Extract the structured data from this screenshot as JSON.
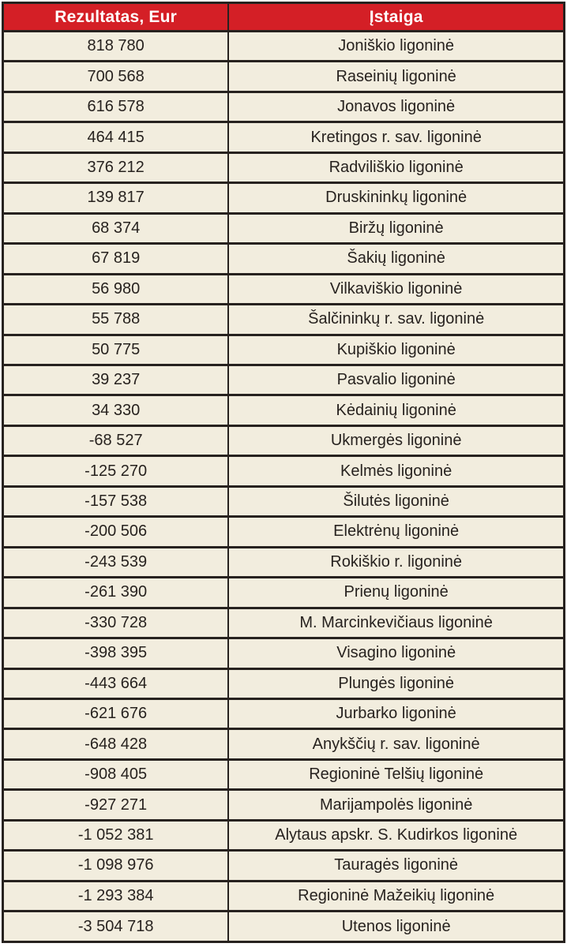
{
  "table": {
    "columns": [
      {
        "label": "Rezultatas, Eur"
      },
      {
        "label": "Įstaiga"
      }
    ],
    "rows": [
      {
        "result": "818 780",
        "institution": "Joniškio ligoninė"
      },
      {
        "result": "700 568",
        "institution": "Raseinių ligoninė"
      },
      {
        "result": "616 578",
        "institution": "Jonavos ligoninė"
      },
      {
        "result": "464 415",
        "institution": "Kretingos r. sav. ligoninė"
      },
      {
        "result": "376 212",
        "institution": "Radviliškio ligoninė"
      },
      {
        "result": "139 817",
        "institution": "Druskininkų ligoninė"
      },
      {
        "result": "68 374",
        "institution": "Biržų ligoninė"
      },
      {
        "result": "67 819",
        "institution": "Šakių ligoninė"
      },
      {
        "result": "56 980",
        "institution": "Vilkaviškio ligoninė"
      },
      {
        "result": "55 788",
        "institution": "Šalčininkų r. sav. ligoninė"
      },
      {
        "result": "50 775",
        "institution": "Kupiškio ligoninė"
      },
      {
        "result": "39 237",
        "institution": "Pasvalio ligoninė"
      },
      {
        "result": "34 330",
        "institution": "Kėdainių ligoninė"
      },
      {
        "result": "-68 527",
        "institution": "Ukmergės ligoninė"
      },
      {
        "result": "-125 270",
        "institution": "Kelmės ligoninė"
      },
      {
        "result": "-157 538",
        "institution": "Šilutės ligoninė"
      },
      {
        "result": "-200 506",
        "institution": "Elektrėnų ligoninė"
      },
      {
        "result": "-243 539",
        "institution": "Rokiškio r. ligoninė"
      },
      {
        "result": "-261 390",
        "institution": "Prienų ligoninė"
      },
      {
        "result": "-330 728",
        "institution": "M. Marcinkevičiaus ligoninė"
      },
      {
        "result": "-398 395",
        "institution": "Visagino ligoninė"
      },
      {
        "result": "-443 664",
        "institution": "Plungės ligoninė"
      },
      {
        "result": "-621 676",
        "institution": "Jurbarko ligoninė"
      },
      {
        "result": "-648 428",
        "institution": "Anykščių r. sav. ligoninė"
      },
      {
        "result": "-908 405",
        "institution": "Regioninė Telšių ligoninė"
      },
      {
        "result": "-927 271",
        "institution": "Marijampolės ligoninė"
      },
      {
        "result": "-1 052 381",
        "institution": "Alytaus apskr. S. Kudirkos ligoninė"
      },
      {
        "result": "-1 098 976",
        "institution": "Tauragės ligoninė"
      },
      {
        "result": "-1 293 384",
        "institution": "Regioninė Mažeikių ligoninė"
      },
      {
        "result": "-3 504 718",
        "institution": "Utenos ligoninė"
      }
    ]
  },
  "colors": {
    "header_bg": "#d41f26",
    "header_text": "#ffffff",
    "row_bg": "#f2edde",
    "border": "#27221f",
    "text": "#27221f"
  },
  "chart_data": {
    "type": "table",
    "title": "",
    "columns": [
      "Rezultatas, Eur",
      "Įstaiga"
    ],
    "rows": [
      [
        "818 780",
        "Joniškio ligoninė"
      ],
      [
        "700 568",
        "Raseinių ligoninė"
      ],
      [
        "616 578",
        "Jonavos ligoninė"
      ],
      [
        "464 415",
        "Kretingos r. sav. ligoninė"
      ],
      [
        "376 212",
        "Radviliškio ligoninė"
      ],
      [
        "139 817",
        "Druskininkų ligoninė"
      ],
      [
        "68 374",
        "Biržų ligoninė"
      ],
      [
        "67 819",
        "Šakių ligoninė"
      ],
      [
        "56 980",
        "Vilkaviškio ligoninė"
      ],
      [
        "55 788",
        "Šalčininkų r. sav. ligoninė"
      ],
      [
        "50 775",
        "Kupiškio ligoninė"
      ],
      [
        "39 237",
        "Pasvalio ligoninė"
      ],
      [
        "34 330",
        "Kėdainių ligoninė"
      ],
      [
        "-68 527",
        "Ukmergės ligoninė"
      ],
      [
        "-125 270",
        "Kelmės ligoninė"
      ],
      [
        "-157 538",
        "Šilutės ligoninė"
      ],
      [
        "-200 506",
        "Elektrėnų ligoninė"
      ],
      [
        "-243 539",
        "Rokiškio r. ligoninė"
      ],
      [
        "-261 390",
        "Prienų ligoninė"
      ],
      [
        "-330 728",
        "M. Marcinkevičiaus ligoninė"
      ],
      [
        "-398 395",
        "Visagino ligoninė"
      ],
      [
        "-443 664",
        "Plungės ligoninė"
      ],
      [
        "-621 676",
        "Jurbarko ligoninė"
      ],
      [
        "-648 428",
        "Anykščių r. sav. ligoninė"
      ],
      [
        "-908 405",
        "Regioninė Telšių ligoninė"
      ],
      [
        "-927 271",
        "Marijampolės ligoninė"
      ],
      [
        "-1 052 381",
        "Alytaus apskr. S. Kudirkos ligoninė"
      ],
      [
        "-1 098 976",
        "Tauragės ligoninė"
      ],
      [
        "-1 293 384",
        "Regioninė Mažeikių ligoninė"
      ],
      [
        "-3 504 718",
        "Utenos ligoninė"
      ]
    ],
    "values_numeric": [
      818780,
      700568,
      616578,
      464415,
      376212,
      139817,
      68374,
      67819,
      56980,
      55788,
      50775,
      39237,
      34330,
      -68527,
      -125270,
      -157538,
      -200506,
      -243539,
      -261390,
      -330728,
      -398395,
      -443664,
      -621676,
      -648428,
      -908405,
      -927271,
      -1052381,
      -1098976,
      -1293384,
      -3504718
    ]
  }
}
